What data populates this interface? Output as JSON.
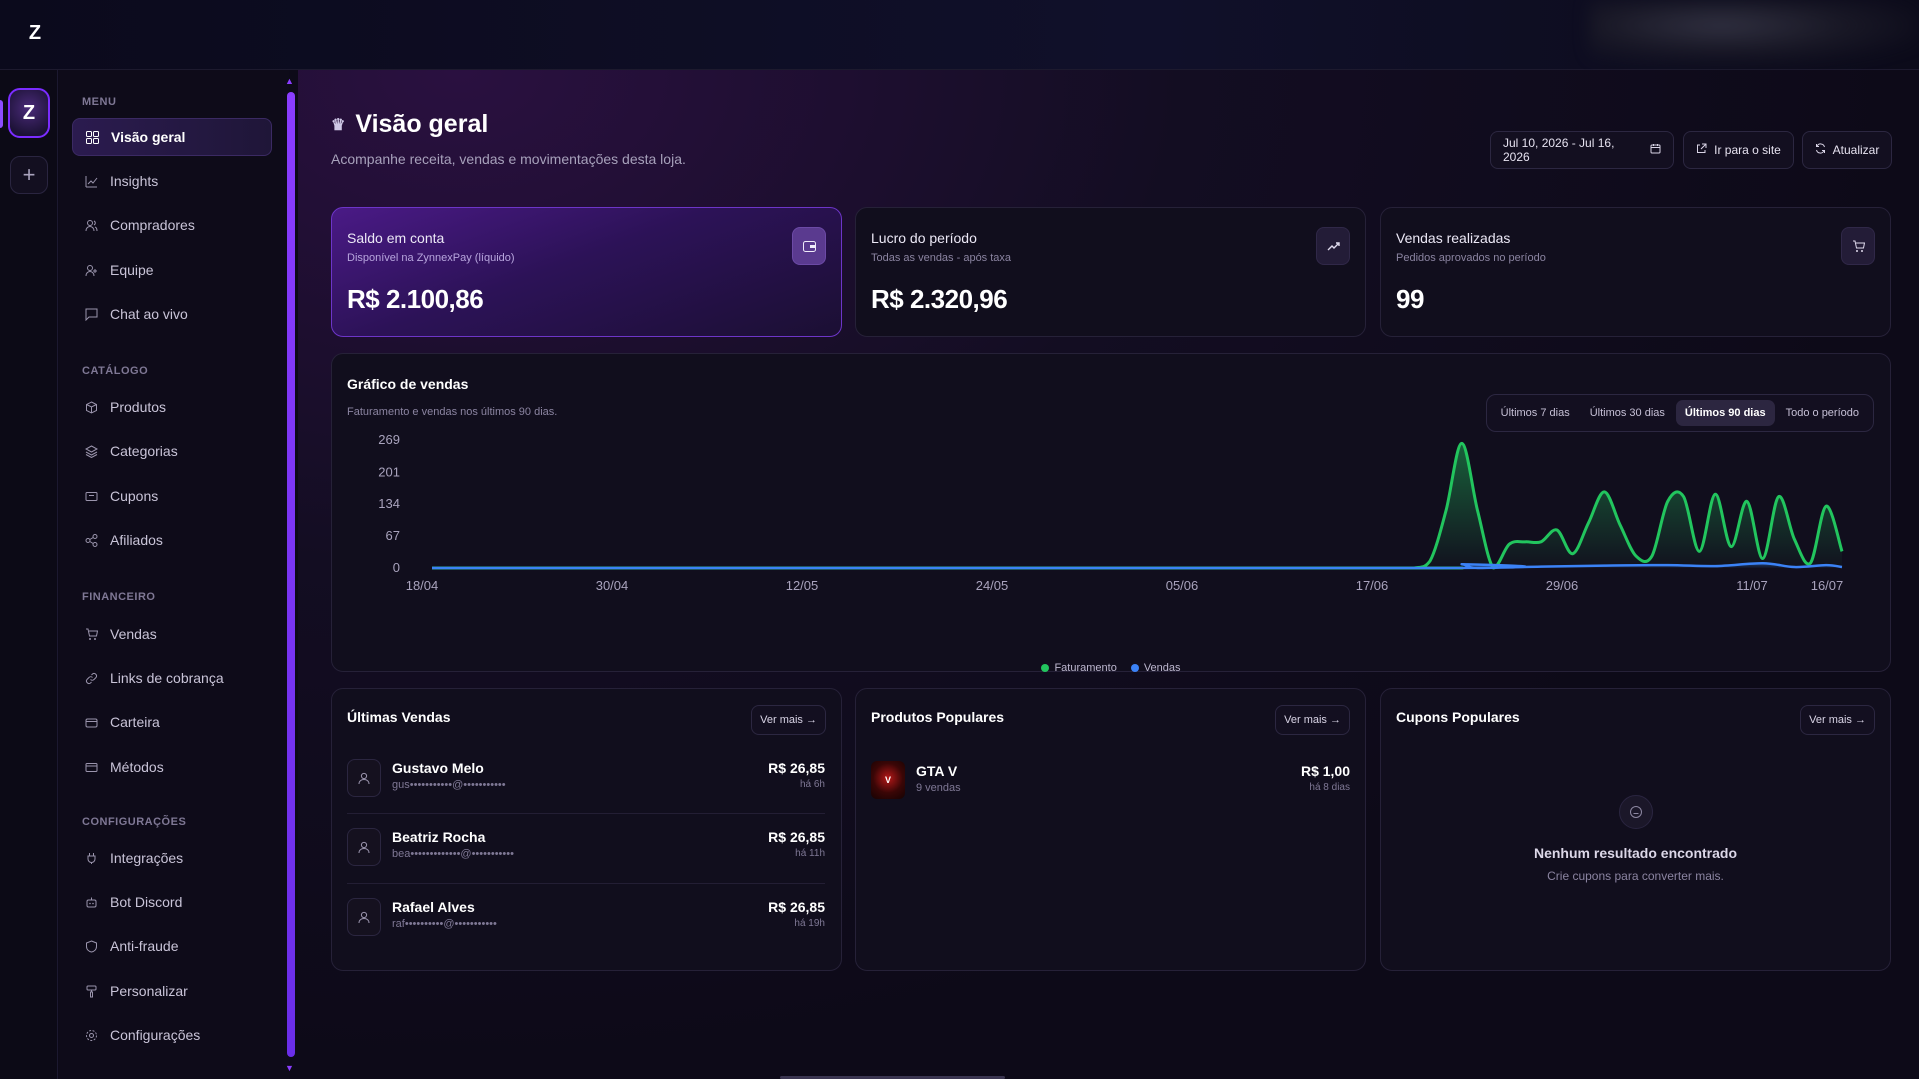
{
  "app": {
    "logo_letter": "Z"
  },
  "rail": {
    "store_letter": "Z",
    "add_label": "+"
  },
  "sidebar": {
    "sections": {
      "menu": "MENU",
      "catalogo": "CATÁLOGO",
      "financeiro": "FINANCEIRO",
      "configuracoes": "CONFIGURAÇÕES"
    },
    "items": [
      {
        "label": "Visão geral",
        "icon": "grid-icon"
      },
      {
        "label": "Insights",
        "icon": "trend-icon"
      },
      {
        "label": "Compradores",
        "icon": "users-icon"
      },
      {
        "label": "Equipe",
        "icon": "user-plus-icon"
      },
      {
        "label": "Chat ao vivo",
        "icon": "chat-icon"
      },
      {
        "label": "Produtos",
        "icon": "box-icon"
      },
      {
        "label": "Categorias",
        "icon": "layers-icon"
      },
      {
        "label": "Cupons",
        "icon": "ticket-icon"
      },
      {
        "label": "Afiliados",
        "icon": "share-icon"
      },
      {
        "label": "Vendas",
        "icon": "cart-icon"
      },
      {
        "label": "Links de cobrança",
        "icon": "link-icon"
      },
      {
        "label": "Carteira",
        "icon": "wallet-icon"
      },
      {
        "label": "Métodos",
        "icon": "card-icon"
      },
      {
        "label": "Integrações",
        "icon": "plug-icon"
      },
      {
        "label": "Bot Discord",
        "icon": "bot-icon"
      },
      {
        "label": "Anti-fraude",
        "icon": "shield-icon"
      },
      {
        "label": "Personalizar",
        "icon": "brush-icon"
      },
      {
        "label": "Configurações",
        "icon": "gear-icon"
      }
    ]
  },
  "header": {
    "title": "Visão geral",
    "subtitle": "Acompanhe receita, vendas e movimentações desta loja.",
    "date_range": "Jul 10, 2026 - Jul 16, 2026",
    "goto_site": "Ir para o site",
    "refresh": "Atualizar"
  },
  "stats": {
    "balance": {
      "title": "Saldo em conta",
      "subtitle": "Disponível na ZynnexPay (líquido)",
      "value": "R$ 2.100,86"
    },
    "profit": {
      "title": "Lucro do período",
      "subtitle": "Todas as vendas - após taxa",
      "value": "R$ 2.320,96"
    },
    "sales": {
      "title": "Vendas realizadas",
      "subtitle": "Pedidos aprovados no período",
      "value": "99"
    }
  },
  "chart": {
    "title": "Gráfico de vendas",
    "subtitle": "Faturamento e vendas nos últimos 90 dias.",
    "ranges": [
      "Últimos 7 dias",
      "Últimos 30 dias",
      "Últimos 90 dias",
      "Todo o período"
    ],
    "active_range": "Últimos 90 dias",
    "legend_revenue": "Faturamento",
    "legend_sales": "Vendas"
  },
  "chart_data": {
    "type": "area",
    "x_ticks": [
      "18/04",
      "30/04",
      "12/05",
      "24/05",
      "05/06",
      "17/06",
      "29/06",
      "11/07",
      "16/07"
    ],
    "y_ticks": [
      "0",
      "67",
      "134",
      "201",
      "269"
    ],
    "ylim": [
      0,
      269
    ],
    "xrange_days": [
      0,
      89
    ],
    "grid": false,
    "legend_position": "bottom",
    "series": [
      {
        "name": "Faturamento",
        "color": "#22c55e",
        "points": [
          [
            0,
            0
          ],
          [
            60,
            0
          ],
          [
            62,
            0
          ],
          [
            63,
            15
          ],
          [
            64,
            120
          ],
          [
            65,
            262
          ],
          [
            66,
            120
          ],
          [
            67,
            0
          ],
          [
            68,
            50
          ],
          [
            69,
            55
          ],
          [
            70,
            55
          ],
          [
            71,
            80
          ],
          [
            72,
            30
          ],
          [
            73,
            95
          ],
          [
            74,
            160
          ],
          [
            75,
            90
          ],
          [
            76,
            25
          ],
          [
            77,
            25
          ],
          [
            78,
            140
          ],
          [
            79,
            150
          ],
          [
            80,
            35
          ],
          [
            81,
            155
          ],
          [
            82,
            45
          ],
          [
            83,
            140
          ],
          [
            84,
            20
          ],
          [
            85,
            150
          ],
          [
            86,
            60
          ],
          [
            87,
            10
          ],
          [
            88,
            130
          ],
          [
            89,
            35
          ]
        ]
      },
      {
        "name": "Vendas",
        "color": "#3b82f6",
        "points": [
          [
            0,
            0
          ],
          [
            64,
            0
          ],
          [
            65,
            8
          ],
          [
            66,
            0
          ],
          [
            70,
            3
          ],
          [
            74,
            5
          ],
          [
            78,
            6
          ],
          [
            81,
            4
          ],
          [
            84,
            10
          ],
          [
            86,
            2
          ],
          [
            88,
            6
          ],
          [
            89,
            2
          ]
        ]
      }
    ]
  },
  "latest_sales": {
    "title": "Últimas Vendas",
    "see_more": "Ver mais →",
    "rows": [
      {
        "name": "Gustavo Melo",
        "email": "gus•••••••••••@•••••••••••",
        "amount": "R$ 26,85",
        "time": "há 6h"
      },
      {
        "name": "Beatriz Rocha",
        "email": "bea•••••••••••••@•••••••••••",
        "amount": "R$ 26,85",
        "time": "há 11h"
      },
      {
        "name": "Rafael Alves",
        "email": "raf••••••••••@•••••••••••",
        "amount": "R$ 26,85",
        "time": "há 19h"
      }
    ]
  },
  "popular_products": {
    "title": "Produtos Populares",
    "see_more": "Ver mais →",
    "items": [
      {
        "name": "GTA V",
        "sales": "9 vendas",
        "price": "R$ 1,00",
        "time": "há 8 dias"
      }
    ]
  },
  "popular_coupons": {
    "title": "Cupons Populares",
    "see_more": "Ver mais →",
    "empty_title": "Nenhum resultado encontrado",
    "empty_sub": "Crie cupons para converter mais."
  },
  "colors": {
    "accent": "#7b2cff",
    "revenue": "#22c55e",
    "sales": "#3b82f6"
  }
}
